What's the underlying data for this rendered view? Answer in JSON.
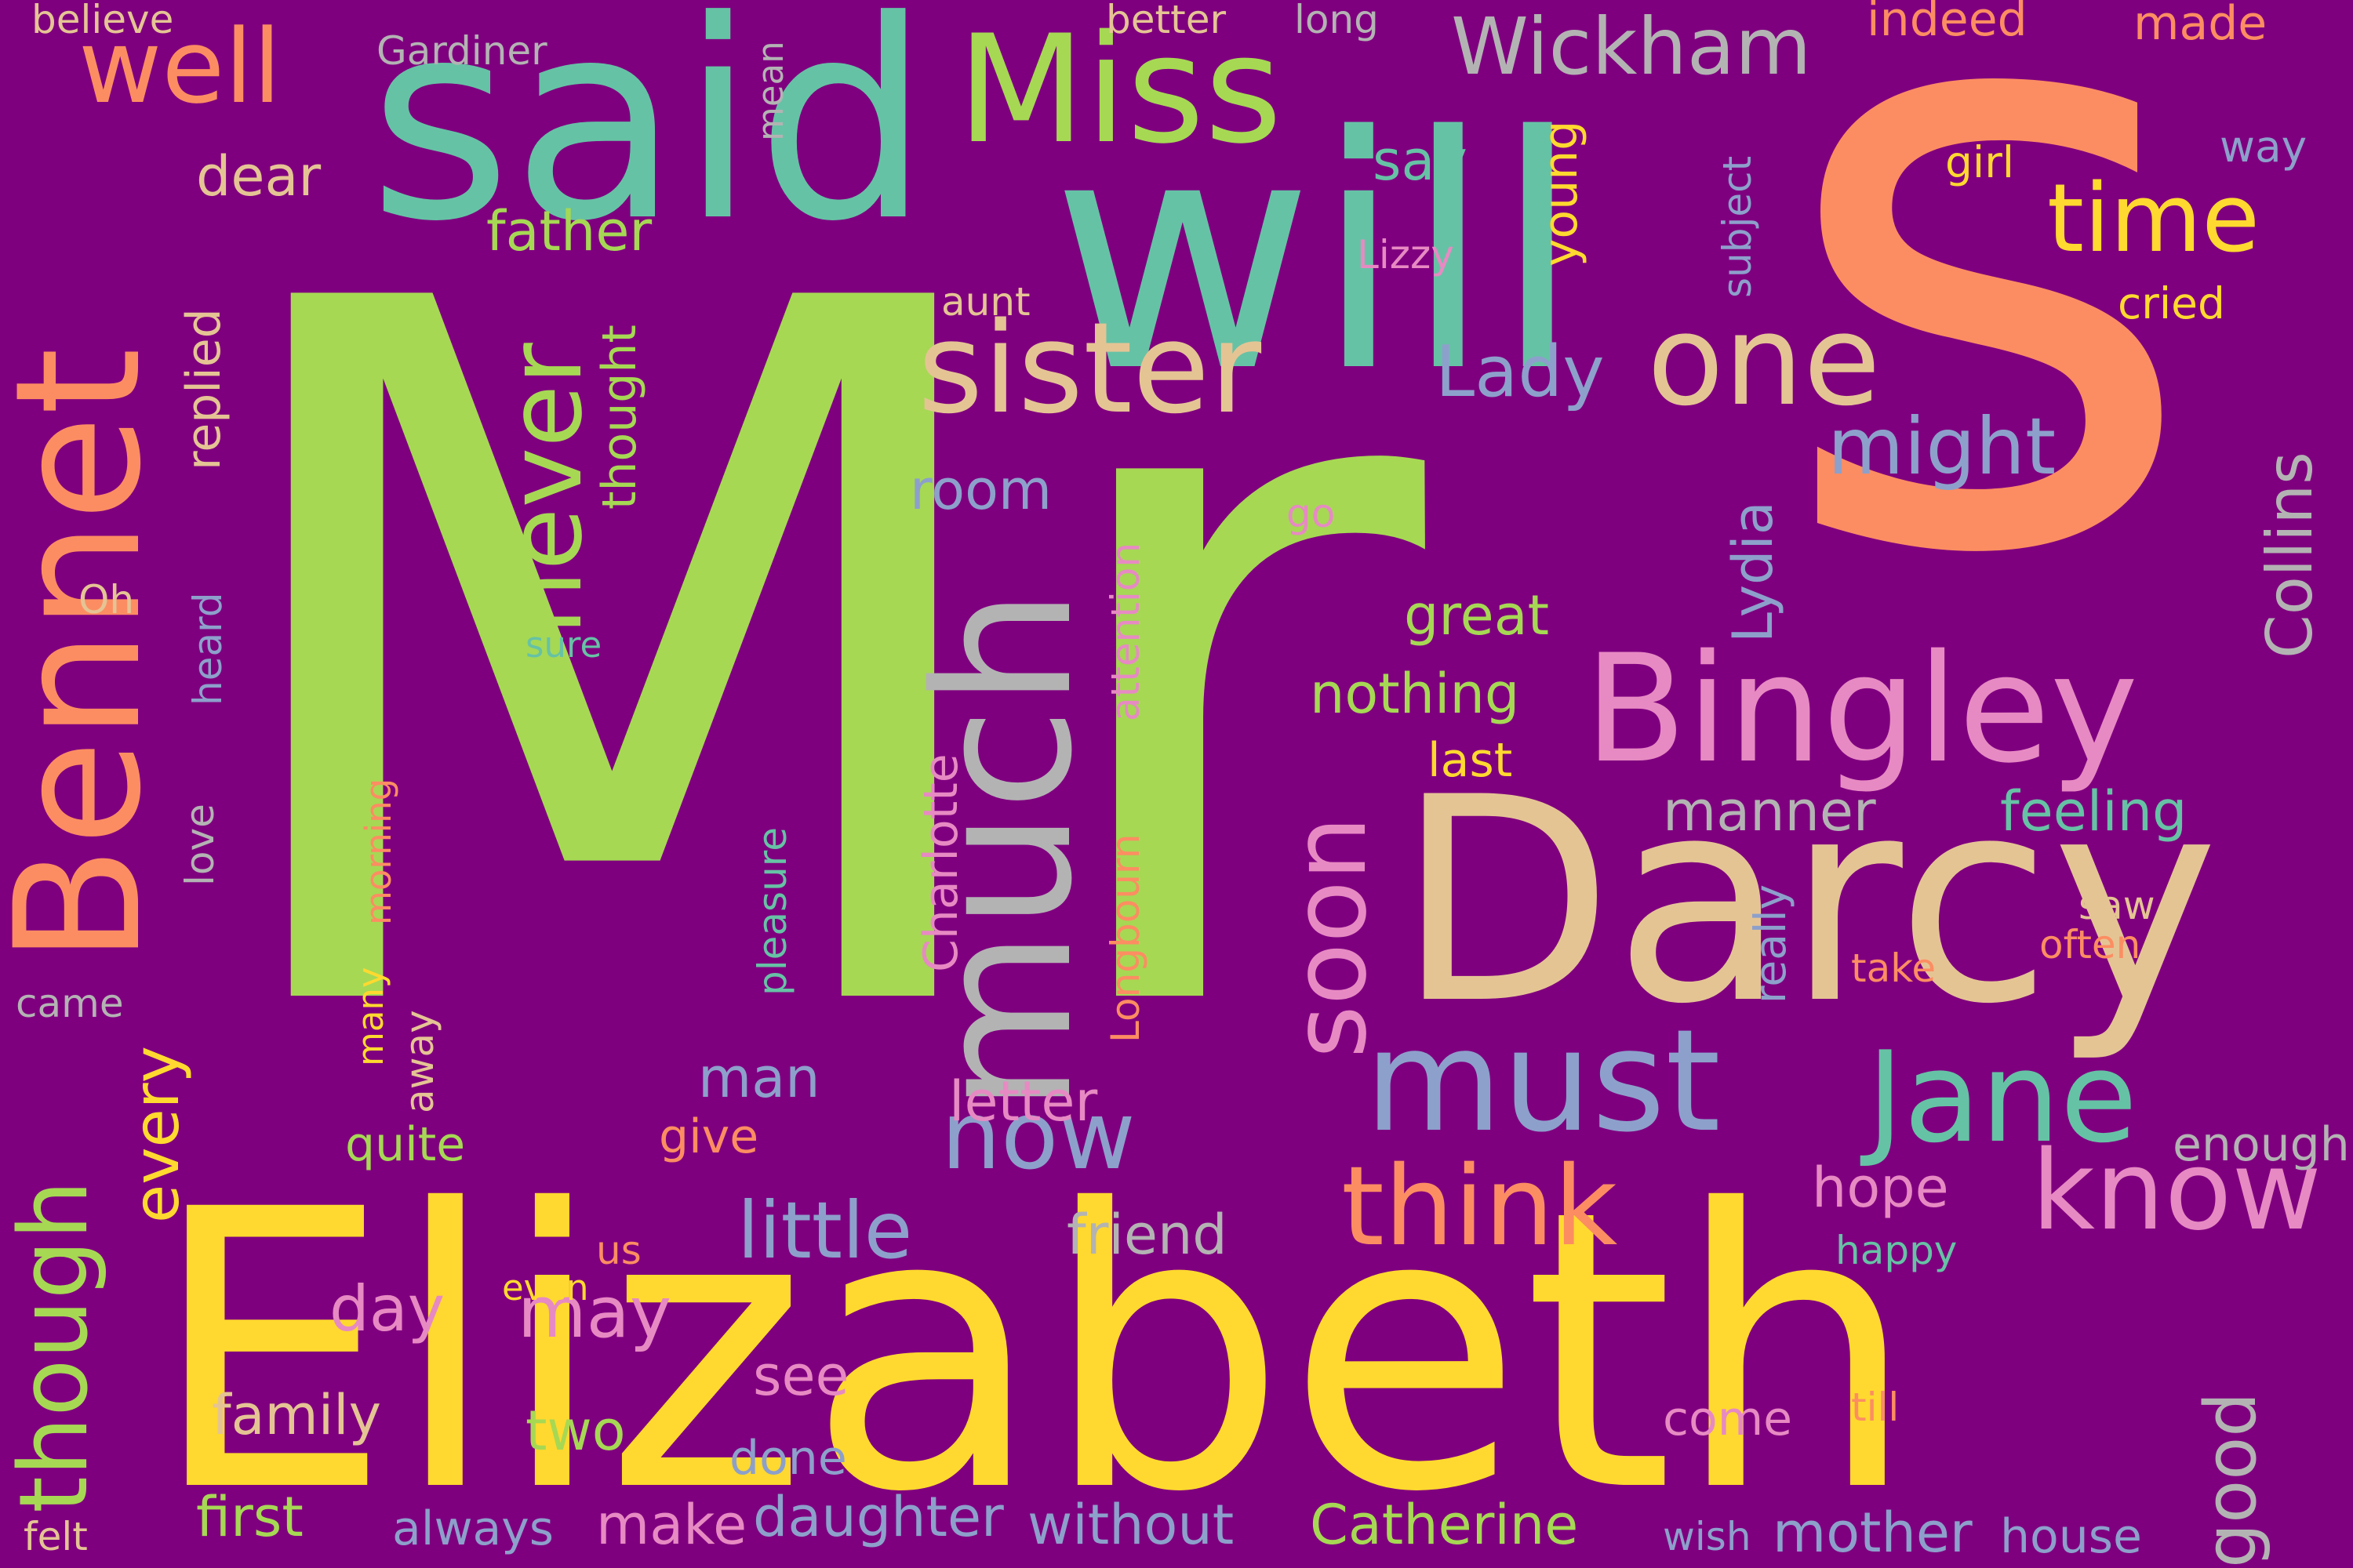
{
  "background": "#7f007f",
  "palette": {
    "lime": "#a6d854",
    "coral": "#fc8d62",
    "teal": "#66c2a5",
    "gold": "#ffd92f",
    "tan": "#e5c494",
    "pink": "#e78ac3",
    "blue": "#8da0cb",
    "gray": "#b3b3b3"
  },
  "words": [
    {
      "text": "Mr",
      "color": "lime"
    },
    {
      "text": "s",
      "color": "coral"
    },
    {
      "text": "Elizabeth",
      "color": "gold"
    },
    {
      "text": "will",
      "color": "teal"
    },
    {
      "text": "said",
      "color": "teal"
    },
    {
      "text": "Darcy",
      "color": "tan"
    },
    {
      "text": "Bingley",
      "color": "pink"
    },
    {
      "text": "Bennet",
      "color": "coral"
    },
    {
      "text": "much",
      "color": "gray"
    },
    {
      "text": "Miss",
      "color": "lime"
    },
    {
      "text": "sister",
      "color": "tan"
    },
    {
      "text": "must",
      "color": "blue"
    },
    {
      "text": "one",
      "color": "tan"
    },
    {
      "text": "Jane",
      "color": "teal"
    },
    {
      "text": "know",
      "color": "pink"
    },
    {
      "text": "think",
      "color": "coral"
    },
    {
      "text": "time",
      "color": "gold"
    },
    {
      "text": "now",
      "color": "blue"
    },
    {
      "text": "well",
      "color": "coral"
    },
    {
      "text": "never",
      "color": "lime"
    },
    {
      "text": "Wickham",
      "color": "gray"
    },
    {
      "text": "though",
      "color": "lime"
    },
    {
      "text": "soon",
      "color": "pink"
    },
    {
      "text": "little",
      "color": "blue"
    },
    {
      "text": "good",
      "color": "gray"
    },
    {
      "text": "might",
      "color": "blue"
    },
    {
      "text": "Collins",
      "color": "gray"
    },
    {
      "text": "Lady",
      "color": "blue"
    },
    {
      "text": "may",
      "color": "pink"
    },
    {
      "text": "every",
      "color": "gold"
    },
    {
      "text": "nothing",
      "color": "lime"
    },
    {
      "text": "friend",
      "color": "gray"
    },
    {
      "text": "first",
      "color": "lime"
    },
    {
      "text": "without",
      "color": "blue"
    },
    {
      "text": "Catherine",
      "color": "lime"
    },
    {
      "text": "family",
      "color": "tan"
    },
    {
      "text": "daughter",
      "color": "blue"
    },
    {
      "text": "make",
      "color": "pink"
    },
    {
      "text": "mother",
      "color": "blue"
    },
    {
      "text": "manner",
      "color": "gray"
    },
    {
      "text": "feeling",
      "color": "teal"
    },
    {
      "text": "day",
      "color": "pink"
    },
    {
      "text": "see",
      "color": "pink"
    },
    {
      "text": "two",
      "color": "lime"
    },
    {
      "text": "man",
      "color": "blue"
    },
    {
      "text": "letter",
      "color": "pink"
    },
    {
      "text": "great",
      "color": "lime"
    },
    {
      "text": "father",
      "color": "lime"
    },
    {
      "text": "dear",
      "color": "tan"
    },
    {
      "text": "room",
      "color": "blue"
    },
    {
      "text": "say",
      "color": "teal"
    },
    {
      "text": "hope",
      "color": "pink"
    },
    {
      "text": "come",
      "color": "pink"
    },
    {
      "text": "house",
      "color": "blue"
    },
    {
      "text": "always",
      "color": "blue"
    },
    {
      "text": "give",
      "color": "coral"
    },
    {
      "text": "quite",
      "color": "lime"
    },
    {
      "text": "done",
      "color": "blue"
    },
    {
      "text": "Lydia",
      "color": "blue"
    },
    {
      "text": "last",
      "color": "gold"
    },
    {
      "text": "enough",
      "color": "gray"
    },
    {
      "text": "thought",
      "color": "lime"
    },
    {
      "text": "replied",
      "color": "tan"
    },
    {
      "text": "Longbourn",
      "color": "coral"
    },
    {
      "text": "attention",
      "color": "pink"
    },
    {
      "text": "Charlotte",
      "color": "pink"
    },
    {
      "text": "pleasure",
      "color": "teal"
    },
    {
      "text": "away",
      "color": "tan"
    },
    {
      "text": "Gardiner",
      "color": "gray"
    },
    {
      "text": "believe",
      "color": "tan"
    },
    {
      "text": "better",
      "color": "tan"
    },
    {
      "text": "long",
      "color": "gray"
    },
    {
      "text": "indeed",
      "color": "coral"
    },
    {
      "text": "made",
      "color": "coral"
    },
    {
      "text": "mean",
      "color": "gray"
    },
    {
      "text": "young",
      "color": "gold"
    },
    {
      "text": "subject",
      "color": "blue"
    },
    {
      "text": "girl",
      "color": "gold"
    },
    {
      "text": "way",
      "color": "blue"
    },
    {
      "text": "cried",
      "color": "gold"
    },
    {
      "text": "aunt",
      "color": "tan"
    },
    {
      "text": "Lizzy",
      "color": "pink"
    },
    {
      "text": "go",
      "color": "pink"
    },
    {
      "text": "Oh",
      "color": "tan"
    },
    {
      "text": "sure",
      "color": "teal"
    },
    {
      "text": "heard",
      "color": "blue"
    },
    {
      "text": "love",
      "color": "gray"
    },
    {
      "text": "morning",
      "color": "coral"
    },
    {
      "text": "many",
      "color": "gold"
    },
    {
      "text": "came",
      "color": "gray"
    },
    {
      "text": "really",
      "color": "blue"
    },
    {
      "text": "saw",
      "color": "tan"
    },
    {
      "text": "often",
      "color": "coral"
    },
    {
      "text": "take",
      "color": "coral"
    },
    {
      "text": "happy",
      "color": "teal"
    },
    {
      "text": "us",
      "color": "coral"
    },
    {
      "text": "even",
      "color": "gold"
    },
    {
      "text": "till",
      "color": "coral"
    },
    {
      "text": "wish",
      "color": "blue"
    },
    {
      "text": "felt",
      "color": "tan"
    }
  ]
}
